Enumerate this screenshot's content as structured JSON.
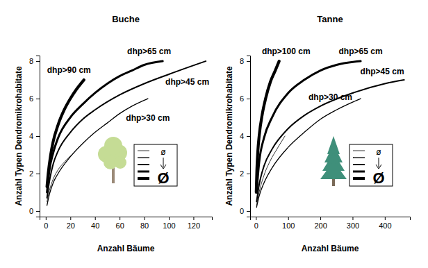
{
  "chart_data": [
    {
      "type": "line",
      "title": "Buche",
      "x_label": "Anzahl Bäume",
      "y_label": "Anzahl Typen Dendromikrohabitate",
      "color": "#000000",
      "xlim": [
        -5,
        135
      ],
      "ylim": [
        -0.3,
        8.3
      ],
      "xticks": [
        0,
        20,
        40,
        60,
        80,
        100,
        120
      ],
      "yticks": [
        0,
        2,
        4,
        6,
        8
      ],
      "annotations": [
        "ø",
        "Ø"
      ],
      "series": [
        {
          "name": null,
          "x": [
            1,
            3,
            6,
            10,
            15,
            21
          ],
          "values": [
            0.5,
            1.1,
            1.7,
            2.2,
            2.6,
            3.0
          ]
        },
        {
          "name": "dhp>30 cm",
          "x": [
            1,
            3,
            6,
            10,
            20,
            30,
            40,
            50,
            60,
            70,
            83
          ],
          "values": [
            0.3,
            0.9,
            1.5,
            2.0,
            2.9,
            3.6,
            4.2,
            4.7,
            5.2,
            5.6,
            6.0
          ]
        },
        {
          "name": "dhp>45 cm",
          "x": [
            1,
            3,
            6,
            10,
            20,
            30,
            40,
            60,
            80,
            100,
            130
          ],
          "values": [
            0.7,
            1.6,
            2.5,
            3.2,
            4.2,
            4.9,
            5.4,
            6.2,
            6.8,
            7.3,
            8.0
          ]
        },
        {
          "name": "dhp>65 cm",
          "x": [
            1,
            3,
            6,
            10,
            20,
            30,
            40,
            50,
            60,
            70,
            80,
            95
          ],
          "values": [
            1.0,
            2.2,
            3.1,
            3.9,
            5.0,
            5.7,
            6.3,
            6.8,
            7.2,
            7.5,
            7.8,
            8.0
          ]
        },
        {
          "name": "dhp>90 cm",
          "x": [
            1,
            2,
            4,
            6,
            10,
            15,
            20,
            25,
            31
          ],
          "values": [
            1.3,
            2.0,
            3.0,
            3.7,
            4.6,
            5.4,
            6.0,
            6.5,
            7.0
          ]
        }
      ]
    },
    {
      "type": "line",
      "title": "Tanne",
      "x_label": "Anzahl Bäume",
      "y_label": "Anzahl Typen Dendromikrohabitate",
      "color": "#000000",
      "xlim": [
        -18,
        478
      ],
      "ylim": [
        -0.3,
        8.3
      ],
      "xticks": [
        0,
        100,
        200,
        300,
        400
      ],
      "yticks": [
        0,
        2,
        4,
        6,
        8
      ],
      "annotations": [
        "ø",
        "Ø"
      ],
      "series": [
        {
          "name": null,
          "x": [
            2,
            10,
            25,
            45,
            65,
            90
          ],
          "values": [
            0.3,
            1.0,
            1.9,
            2.7,
            3.3,
            4.0
          ]
        },
        {
          "name": "dhp>30 cm",
          "x": [
            2,
            10,
            25,
            50,
            100,
            150,
            200,
            250,
            325
          ],
          "values": [
            0.2,
            0.8,
            1.5,
            2.3,
            3.4,
            4.2,
            4.9,
            5.4,
            6.0
          ]
        },
        {
          "name": "dhp>45 cm",
          "x": [
            2,
            10,
            25,
            50,
            100,
            150,
            200,
            300,
            400,
            460
          ],
          "values": [
            0.5,
            1.4,
            2.4,
            3.3,
            4.4,
            5.1,
            5.6,
            6.3,
            6.8,
            7.0
          ]
        },
        {
          "name": "dhp>65 cm",
          "x": [
            2,
            10,
            25,
            50,
            100,
            150,
            200,
            250,
            325
          ],
          "values": [
            1.0,
            2.6,
            3.9,
            5.0,
            6.3,
            7.0,
            7.5,
            7.8,
            8.0
          ]
        },
        {
          "name": "dhp>100 cm",
          "x": [
            1,
            3,
            6,
            10,
            20,
            30,
            45,
            60,
            72
          ],
          "values": [
            1.0,
            2.2,
            3.2,
            4.0,
            5.2,
            6.0,
            6.9,
            7.5,
            8.0
          ]
        }
      ]
    }
  ]
}
